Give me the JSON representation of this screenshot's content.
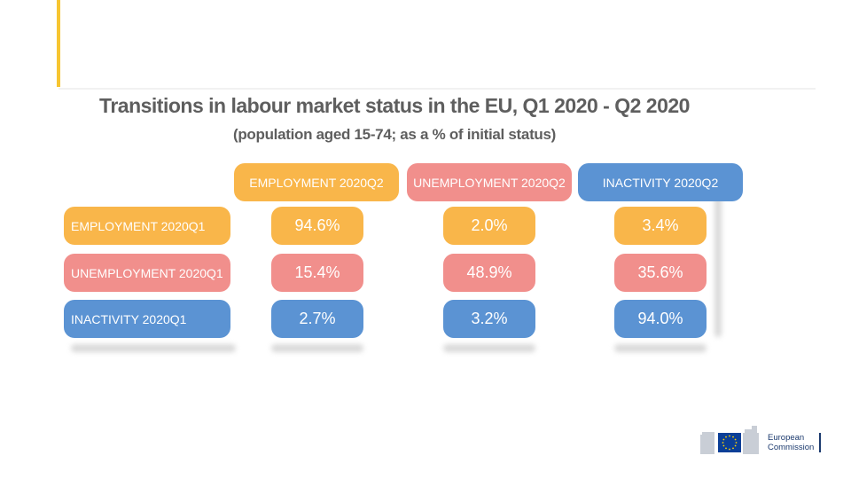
{
  "colors": {
    "employment": "#f9b64a",
    "unemployment": "#f18f8c",
    "inactivity": "#5b93d3",
    "accent": "#f7c531",
    "title": "#5e5e5e"
  },
  "chart_data": {
    "type": "table",
    "title": "Transitions in labour market status in the EU, Q1 2020 - Q2 2020",
    "subtitle": "(population aged 15-74; as a % of initial status)",
    "columns": [
      "EMPLOYMENT 2020Q2",
      "UNEMPLOYMENT 2020Q2",
      "INACTIVITY 2020Q2"
    ],
    "rows": [
      {
        "label": "EMPLOYMENT 2020Q1",
        "values": [
          "94.6%",
          "2.0%",
          "3.4%"
        ]
      },
      {
        "label": "UNEMPLOYMENT 2020Q1",
        "values": [
          "15.4%",
          "48.9%",
          "35.6%"
        ]
      },
      {
        "label": "INACTIVITY 2020Q1",
        "values": [
          "2.7%",
          "3.2%",
          "94.0%"
        ]
      }
    ],
    "values_numeric": [
      [
        94.6,
        2.0,
        3.4
      ],
      [
        15.4,
        48.9,
        35.6
      ],
      [
        2.7,
        3.2,
        94.0
      ]
    ]
  },
  "logo": {
    "line1": "European",
    "line2": "Commission"
  }
}
